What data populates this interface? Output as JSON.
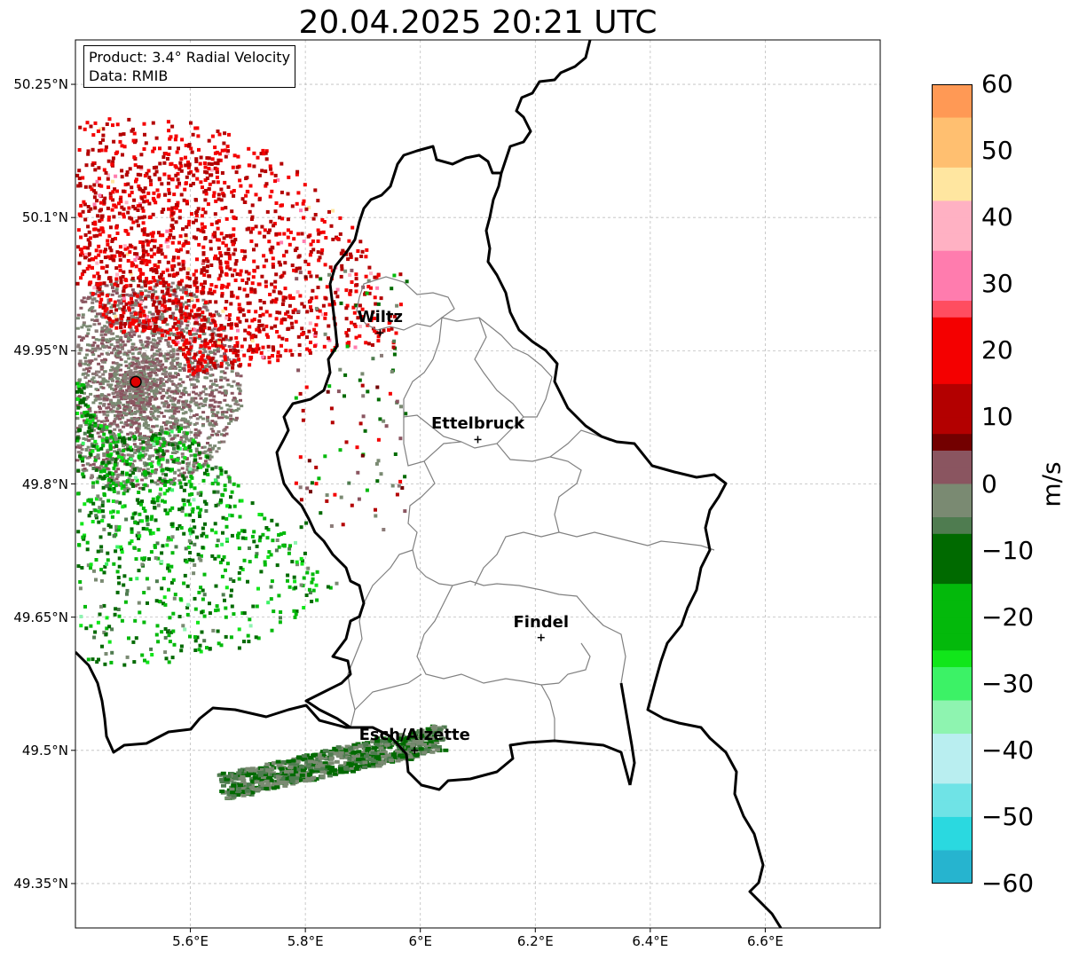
{
  "title": "20.04.2025 20:21 UTC",
  "info": {
    "product": "Product: 3.4° Radial Velocity",
    "data": "Data: RMIB"
  },
  "axes": {
    "lon_ticks": [
      "5.6°E",
      "5.8°E",
      "6°E",
      "6.2°E",
      "6.4°E",
      "6.6°E"
    ],
    "lat_ticks": [
      "50.25°N",
      "50.1°N",
      "49.95°N",
      "49.8°N",
      "49.65°N",
      "49.5°N",
      "49.35°N"
    ],
    "lon_range": [
      5.4,
      6.8
    ],
    "lat_range": [
      49.3,
      50.3
    ],
    "grid": true
  },
  "cities": [
    {
      "name": "Wiltz",
      "lon": 5.93,
      "lat": 49.97
    },
    {
      "name": "Ettelbruck",
      "lon": 6.1,
      "lat": 49.85
    },
    {
      "name": "Findel",
      "lon": 6.21,
      "lat": 49.627
    },
    {
      "name": "Esch/Alzette",
      "lon": 5.99,
      "lat": 49.5
    }
  ],
  "radar_site": {
    "lon": 5.505,
    "lat": 49.915,
    "color": "#e00000"
  },
  "colorbar": {
    "label": "m/s",
    "min": -60,
    "max": 60,
    "ticks": [
      "60",
      "50",
      "40",
      "30",
      "20",
      "10",
      "0",
      "−10",
      "−20",
      "−30",
      "−40",
      "−50",
      "−60"
    ]
  }
}
